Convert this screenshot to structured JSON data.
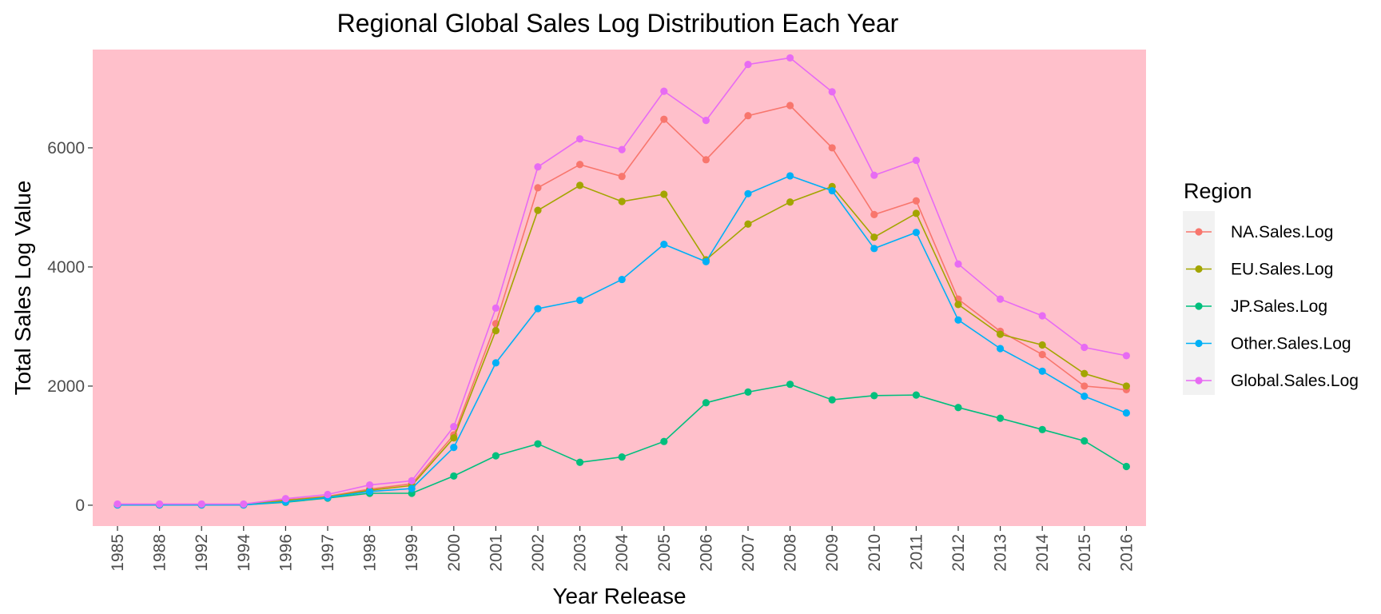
{
  "chart_data": {
    "type": "line",
    "title": "Regional Global Sales Log Distribution Each Year",
    "xlabel": "Year Release",
    "ylabel": "Total Sales Log Value",
    "categories": [
      "1985",
      "1988",
      "1992",
      "1994",
      "1996",
      "1997",
      "1998",
      "1999",
      "2000",
      "2001",
      "2002",
      "2003",
      "2004",
      "2005",
      "2006",
      "2007",
      "2008",
      "2009",
      "2010",
      "2011",
      "2012",
      "2013",
      "2014",
      "2015",
      "2016"
    ],
    "ylim": [
      -350,
      7650
    ],
    "yticks": [
      0,
      2000,
      4000,
      6000
    ],
    "ytick_labels": [
      "0",
      "2000",
      "4000",
      "6000"
    ],
    "grid": false,
    "panel_background": "#ffc0cb",
    "legend": {
      "title": "Region",
      "position": "right"
    },
    "series": [
      {
        "name": "NA.Sales.Log",
        "color": "#f8766d",
        "values": [
          10,
          10,
          10,
          10,
          90,
          150,
          270,
          360,
          1180,
          3050,
          5330,
          5720,
          5520,
          6480,
          5800,
          6540,
          6710,
          6000,
          4880,
          5110,
          3460,
          2920,
          2530,
          2000,
          1940
        ]
      },
      {
        "name": "EU.Sales.Log",
        "color": "#a3a500",
        "values": [
          5,
          5,
          5,
          5,
          80,
          140,
          250,
          330,
          1130,
          2930,
          4950,
          5370,
          5100,
          5220,
          4120,
          4720,
          5090,
          5350,
          4500,
          4900,
          3370,
          2870,
          2690,
          2210,
          2000
        ]
      },
      {
        "name": "JP.Sales.Log",
        "color": "#00bf7d",
        "values": [
          5,
          5,
          5,
          5,
          50,
          120,
          200,
          200,
          490,
          830,
          1030,
          720,
          810,
          1070,
          1720,
          1900,
          2030,
          1770,
          1840,
          1850,
          1640,
          1460,
          1270,
          1080,
          650
        ]
      },
      {
        "name": "Other.Sales.Log",
        "color": "#00b0f6",
        "values": [
          5,
          5,
          5,
          5,
          60,
          130,
          230,
          280,
          970,
          2390,
          3300,
          3440,
          3790,
          4380,
          4090,
          5230,
          5530,
          5280,
          4310,
          4580,
          3110,
          2630,
          2250,
          1830,
          1550
        ]
      },
      {
        "name": "Global.Sales.Log",
        "color": "#e76bf3",
        "values": [
          20,
          20,
          20,
          20,
          110,
          180,
          340,
          410,
          1320,
          3310,
          5680,
          6150,
          5970,
          6950,
          6460,
          7400,
          7510,
          6940,
          5540,
          5790,
          4050,
          3460,
          3180,
          2650,
          2510
        ]
      }
    ]
  }
}
